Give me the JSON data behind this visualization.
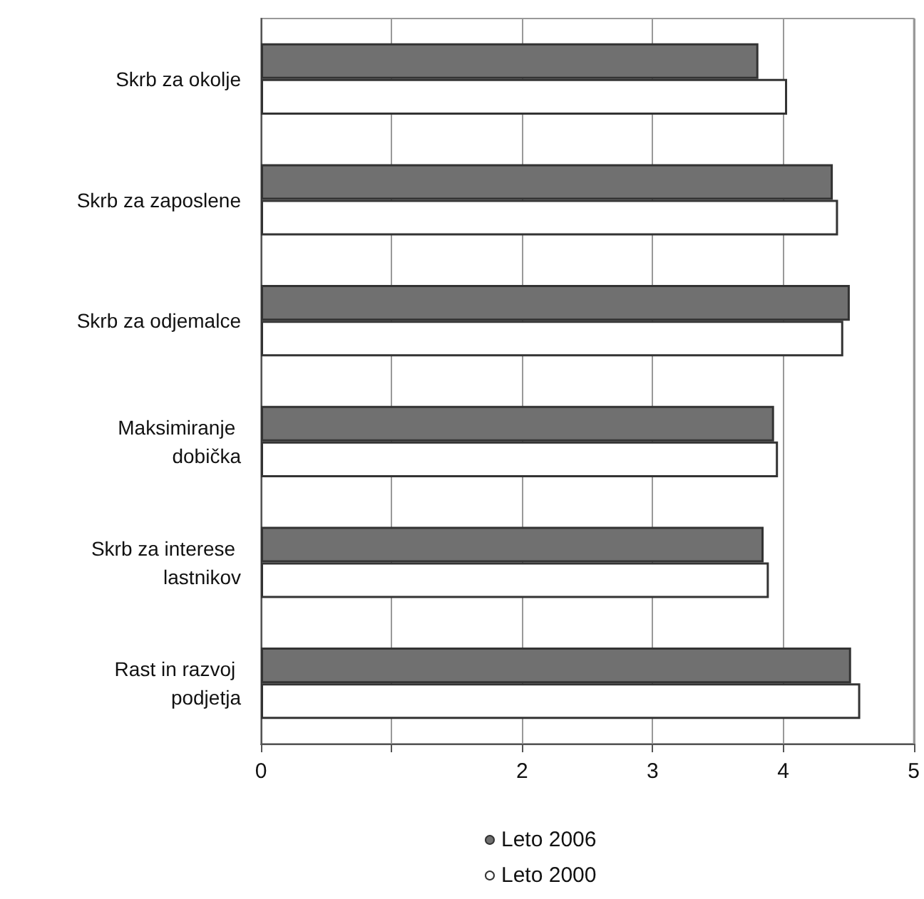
{
  "chart_data": {
    "type": "bar",
    "orientation": "horizontal",
    "categories": [
      "Skrb za okolje",
      "Skrb za zaposlene",
      "Skrb za odjemalce",
      "Maksimiranje dobička",
      "Skrb za interese lastnikov",
      "Rast in razvoj podjetja"
    ],
    "series": [
      {
        "name": "Leto 2006",
        "color": "#707070",
        "values": [
          3.81,
          4.38,
          4.51,
          3.93,
          3.85,
          4.52
        ]
      },
      {
        "name": "Leto 2000",
        "color": "#ffffff",
        "values": [
          4.03,
          4.42,
          4.46,
          3.96,
          3.89,
          4.59
        ]
      }
    ],
    "xlim": [
      0,
      5
    ],
    "xticks": [
      0,
      {
        "value": 1,
        "label": null
      },
      2,
      3,
      4,
      5
    ],
    "grid": "x",
    "legend": "bottom"
  }
}
